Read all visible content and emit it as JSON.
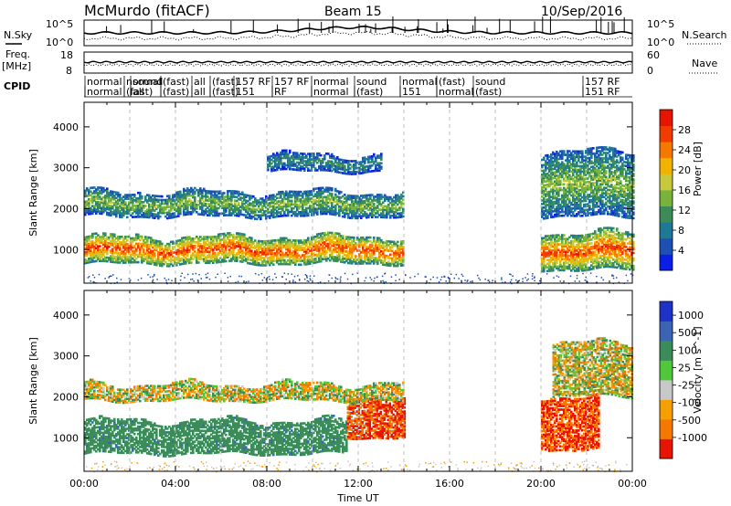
{
  "header": {
    "title": "McMurdo (fitACF)",
    "beam": "Beam 15",
    "date": "10/Sep/2016"
  },
  "strips": {
    "nsky_label": "N.Sky",
    "nsearch_label": "N.Search",
    "freq_label_1": "Freq.",
    "freq_label_2": "[MHz]",
    "nave_label": "Nave",
    "cpid_label": "CPID",
    "noise_ticks": [
      "10^5",
      "10^0"
    ],
    "freq_ticks": [
      "18",
      "8"
    ],
    "nave_ticks": [
      "60",
      "0"
    ]
  },
  "cpid": {
    "row1": [
      "normal",
      "normal",
      "sound",
      "(fast)",
      "all",
      "(fast)",
      "157 RF",
      "157 RF",
      "normal",
      "sound",
      "normal",
      "(fast)",
      "sound",
      "157 RF"
    ],
    "row2": [
      "normal",
      "(fast)",
      "all",
      "(fast)",
      "all",
      "(fast)",
      "151",
      "RF",
      "normal",
      "(fast)",
      "151",
      "normal",
      "(fast)",
      "151 RF"
    ]
  },
  "chart_data": [
    {
      "type": "heatmap",
      "name": "power",
      "xlabel": "",
      "ylabel": "Slant Range [km]",
      "xlim": [
        0,
        24
      ],
      "ylim": [
        180,
        4600
      ],
      "yticks": [
        1000,
        2000,
        3000,
        4000
      ],
      "colorbar": {
        "label": "Power [dB]",
        "ticks": [
          4,
          8,
          12,
          16,
          20,
          24,
          28
        ],
        "colors": [
          "#0a1ee6",
          "#1e50b4",
          "#1e7896",
          "#3c8c5a",
          "#78b43c",
          "#c8c83c",
          "#f0b400",
          "#f57800",
          "#f03c00",
          "#e61400"
        ]
      },
      "features": [
        {
          "t": [
            0.0,
            14.0
          ],
          "range_km": [
            650,
            1300
          ],
          "peak_db": 26
        },
        {
          "t": [
            0.0,
            14.0
          ],
          "range_km": [
            1800,
            2400
          ],
          "peak_db": 14
        },
        {
          "t": [
            8.0,
            13.0
          ],
          "range_km": [
            2900,
            3300
          ],
          "peak_db": 10
        },
        {
          "t": [
            20.0,
            24.0
          ],
          "range_km": [
            500,
            1400
          ],
          "peak_db": 26
        },
        {
          "t": [
            20.0,
            24.0
          ],
          "range_km": [
            1800,
            3400
          ],
          "peak_db": 14
        }
      ]
    },
    {
      "type": "heatmap",
      "name": "velocity",
      "xlabel": "Time UT",
      "ylabel": "Slant Range [km]",
      "xlim": [
        0,
        24
      ],
      "ylim": [
        180,
        4600
      ],
      "yticks": [
        1000,
        2000,
        3000,
        4000
      ],
      "xticks": [
        "00:00",
        "04:00",
        "08:00",
        "12:00",
        "16:00",
        "20:00",
        "00:00"
      ],
      "colorbar": {
        "label": "Velocity [m s^-1]",
        "ticks": [
          1000,
          500,
          100,
          25,
          -25,
          -100,
          -500,
          -1000
        ],
        "colors": [
          "#1e32c8",
          "#3c64b4",
          "#3c8c5a",
          "#50c83c",
          "#c8c8c8",
          "#f5a000",
          "#f57800",
          "#e61400"
        ]
      },
      "features": [
        {
          "t": [
            0.0,
            11.5
          ],
          "range_km": [
            600,
            1400
          ],
          "velocity": 200
        },
        {
          "t": [
            11.5,
            14.0
          ],
          "range_km": [
            1000,
            2000
          ],
          "velocity": -300
        },
        {
          "t": [
            0.0,
            14.0
          ],
          "range_km": [
            1900,
            2300
          ],
          "velocity": 0
        },
        {
          "t": [
            20.0,
            22.5
          ],
          "range_km": [
            700,
            2000
          ],
          "velocity": -300
        },
        {
          "t": [
            20.5,
            24.0
          ],
          "range_km": [
            2000,
            3300
          ],
          "velocity": 0
        }
      ]
    }
  ]
}
